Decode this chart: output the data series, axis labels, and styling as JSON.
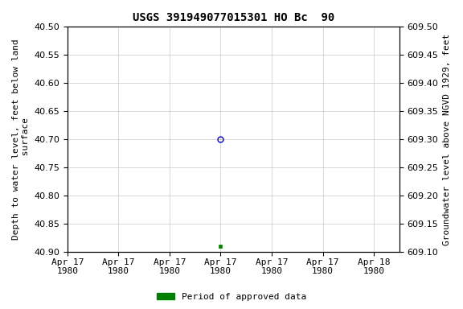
{
  "title": "USGS 391949077015301 HO Bc  90",
  "ylabel_left": "Depth to water level, feet below land\n surface",
  "ylabel_right": "Groundwater level above NGVD 1929, feet",
  "ylim_left": [
    40.5,
    40.9
  ],
  "ylim_right": [
    609.5,
    609.1
  ],
  "yticks_left": [
    40.5,
    40.55,
    40.6,
    40.65,
    40.7,
    40.75,
    40.8,
    40.85,
    40.9
  ],
  "yticks_right": [
    609.5,
    609.45,
    609.4,
    609.35,
    609.3,
    609.25,
    609.2,
    609.15,
    609.1
  ],
  "yticks_right_labels": [
    "609.50",
    "609.45",
    "609.40",
    "609.35",
    "609.30",
    "609.25",
    "609.20",
    "609.15",
    "609.10"
  ],
  "data_blue_circle_value": 40.7,
  "data_green_square_value": 40.89,
  "blue_circle_color": "#0000cc",
  "green_square_color": "#008000",
  "background_color": "#ffffff",
  "grid_color": "#c8c8c8",
  "legend_label": "Period of approved data",
  "title_fontsize": 10,
  "axis_label_fontsize": 8,
  "tick_fontsize": 8,
  "xtick_hours": [
    0,
    4,
    8,
    12,
    16,
    20,
    24
  ],
  "xtick_labels": [
    "Apr 17\n1980",
    "Apr 17\n1980",
    "Apr 17\n1980",
    "Apr 17\n1980",
    "Apr 17\n1980",
    "Apr 17\n1980",
    "Apr 18\n1980"
  ]
}
